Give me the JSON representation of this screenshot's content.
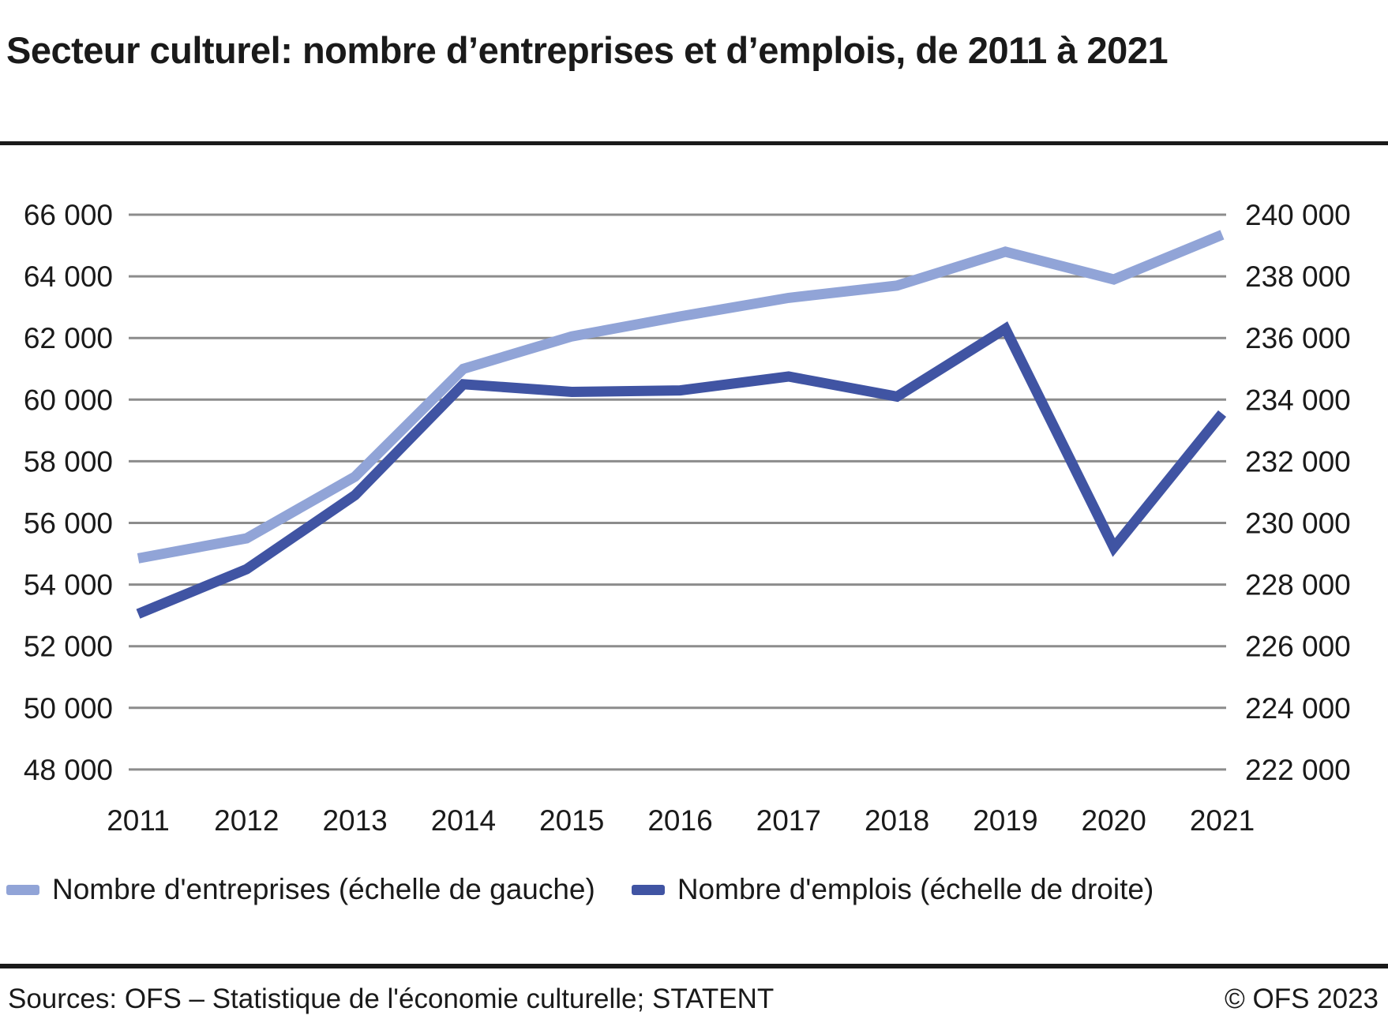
{
  "header": {
    "title": "Secteur culturel: nombre d’entreprises et d’emplois, de 2011 à 2021"
  },
  "chart_data": {
    "type": "line",
    "title": "Secteur culturel: nombre d’entreprises et d’emplois, de 2011 à 2021",
    "categories": [
      "2011",
      "2012",
      "2013",
      "2014",
      "2015",
      "2016",
      "2017",
      "2018",
      "2019",
      "2020",
      "2021"
    ],
    "series": [
      {
        "name": "Nombre d'entreprises (échelle de gauche)",
        "axis": "left",
        "color": "#91A4D7",
        "values": [
          54850,
          55500,
          57500,
          61000,
          62050,
          62700,
          63300,
          63700,
          64800,
          63900,
          65350
        ]
      },
      {
        "name": "Nombre d'emplois (échelle de droite)",
        "axis": "right",
        "color": "#4054A3",
        "values": [
          227050,
          228500,
          230900,
          234500,
          234250,
          234300,
          234750,
          234100,
          236300,
          229200,
          233550
        ]
      }
    ],
    "left_axis": {
      "min": 48000,
      "max": 66000,
      "step": 2000,
      "tick_labels_top_to_bottom": [
        "66 000",
        "64 000",
        "62 000",
        "60 000",
        "58 000",
        "56 000",
        "54 000",
        "52 000",
        "50 000",
        "48 000"
      ]
    },
    "right_axis": {
      "min": 222000,
      "max": 240000,
      "step": 2000,
      "tick_labels_top_to_bottom": [
        "240 000",
        "238 000",
        "236 000",
        "234 000",
        "232 000",
        "230 000",
        "228 000",
        "226 000",
        "224 000",
        "222 000"
      ]
    },
    "grid": true,
    "gridline_color": "#8C8C8C",
    "legend_position": "bottom"
  },
  "footer": {
    "sources": "Sources: OFS – Statistique de l'économie culturelle; STATENT",
    "copyright": "© OFS 2023"
  }
}
